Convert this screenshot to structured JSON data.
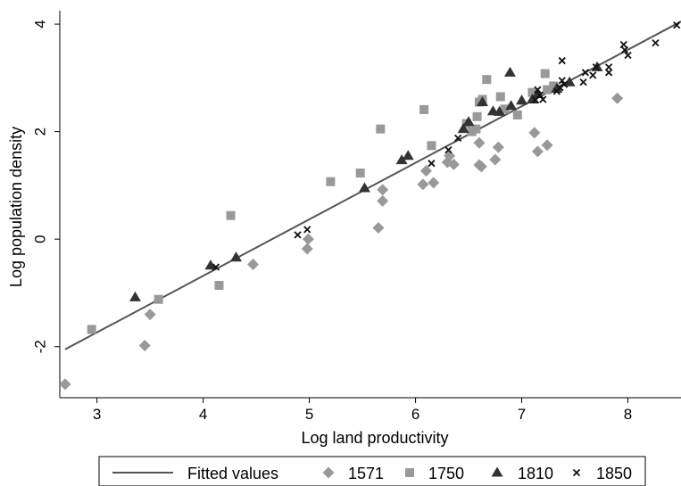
{
  "chart_data": {
    "type": "scatter",
    "xlabel": "Log land productivity",
    "ylabel": "Log population density",
    "xlim": [
      2.65,
      8.5
    ],
    "ylim": [
      -2.95,
      4.25
    ],
    "xticks": [
      "3",
      "4",
      "5",
      "6",
      "7",
      "8"
    ],
    "yticks": [
      "-2",
      "0",
      "2",
      "4"
    ],
    "grid": false,
    "legend_position": "bottom",
    "colors": {
      "marker": "#999999",
      "dark": "#333333",
      "cross": "#111111",
      "line": "#555555"
    },
    "fitted": {
      "name": "Fitted values",
      "x": [
        2.7,
        8.5
      ],
      "y": [
        -2.05,
        4.05
      ]
    },
    "series": [
      {
        "name": "1571",
        "marker": "diamond",
        "color": "#999999",
        "points": [
          [
            2.7,
            -2.7
          ],
          [
            3.45,
            -1.98
          ],
          [
            3.5,
            -1.4
          ],
          [
            4.47,
            -0.47
          ],
          [
            4.98,
            -0.18
          ],
          [
            4.99,
            0.0
          ],
          [
            5.65,
            0.21
          ],
          [
            5.69,
            0.71
          ],
          [
            5.69,
            0.92
          ],
          [
            6.07,
            1.02
          ],
          [
            6.1,
            1.27
          ],
          [
            6.17,
            1.05
          ],
          [
            6.3,
            1.43
          ],
          [
            6.32,
            1.55
          ],
          [
            6.36,
            1.39
          ],
          [
            6.6,
            1.38
          ],
          [
            6.6,
            1.79
          ],
          [
            6.62,
            1.35
          ],
          [
            6.75,
            1.48
          ],
          [
            6.78,
            1.71
          ],
          [
            7.12,
            1.98
          ],
          [
            7.15,
            1.63
          ],
          [
            7.24,
            1.75
          ],
          [
            7.9,
            2.62
          ]
        ]
      },
      {
        "name": "1750",
        "marker": "square",
        "color": "#999999",
        "points": [
          [
            2.95,
            -1.68
          ],
          [
            3.58,
            -1.12
          ],
          [
            4.15,
            -0.86
          ],
          [
            4.26,
            0.44
          ],
          [
            5.2,
            1.07
          ],
          [
            5.48,
            1.23
          ],
          [
            5.67,
            2.05
          ],
          [
            6.08,
            2.41
          ],
          [
            6.15,
            1.74
          ],
          [
            6.48,
            2.15
          ],
          [
            6.53,
            2.0
          ],
          [
            6.57,
            2.05
          ],
          [
            6.58,
            2.28
          ],
          [
            6.6,
            2.55
          ],
          [
            6.63,
            2.6
          ],
          [
            6.67,
            2.97
          ],
          [
            6.8,
            2.65
          ],
          [
            6.84,
            2.42
          ],
          [
            6.96,
            2.31
          ],
          [
            7.1,
            2.73
          ],
          [
            7.22,
            3.08
          ],
          [
            7.24,
            2.78
          ],
          [
            7.3,
            2.85
          ]
        ]
      },
      {
        "name": "1810",
        "marker": "triangle",
        "color": "#333333",
        "points": [
          [
            3.36,
            -1.08
          ],
          [
            4.07,
            -0.49
          ],
          [
            4.31,
            -0.34
          ],
          [
            5.52,
            0.95
          ],
          [
            5.87,
            1.47
          ],
          [
            5.93,
            1.55
          ],
          [
            6.45,
            2.05
          ],
          [
            6.5,
            2.18
          ],
          [
            6.63,
            2.55
          ],
          [
            6.73,
            2.38
          ],
          [
            6.79,
            2.37
          ],
          [
            6.89,
            3.1
          ],
          [
            6.9,
            2.48
          ],
          [
            7.0,
            2.58
          ],
          [
            7.1,
            2.6
          ],
          [
            7.15,
            2.7
          ],
          [
            7.33,
            2.8
          ],
          [
            7.45,
            2.92
          ],
          [
            7.71,
            3.2
          ]
        ]
      },
      {
        "name": "1850",
        "marker": "cross",
        "color": "#111111",
        "points": [
          [
            4.12,
            -0.52
          ],
          [
            4.89,
            0.08
          ],
          [
            4.98,
            0.18
          ],
          [
            6.15,
            1.41
          ],
          [
            6.31,
            1.66
          ],
          [
            6.4,
            1.88
          ],
          [
            7.13,
            2.59
          ],
          [
            7.15,
            2.78
          ],
          [
            7.17,
            2.68
          ],
          [
            7.2,
            2.6
          ],
          [
            7.33,
            2.75
          ],
          [
            7.36,
            2.82
          ],
          [
            7.38,
            3.32
          ],
          [
            7.38,
            2.95
          ],
          [
            7.4,
            2.88
          ],
          [
            7.58,
            2.92
          ],
          [
            7.6,
            3.1
          ],
          [
            7.67,
            3.05
          ],
          [
            7.7,
            3.2
          ],
          [
            7.82,
            3.2
          ],
          [
            7.82,
            3.1
          ],
          [
            7.96,
            3.62
          ],
          [
            7.97,
            3.52
          ],
          [
            8.0,
            3.42
          ],
          [
            8.26,
            3.65
          ],
          [
            8.46,
            3.98
          ]
        ]
      }
    ]
  }
}
